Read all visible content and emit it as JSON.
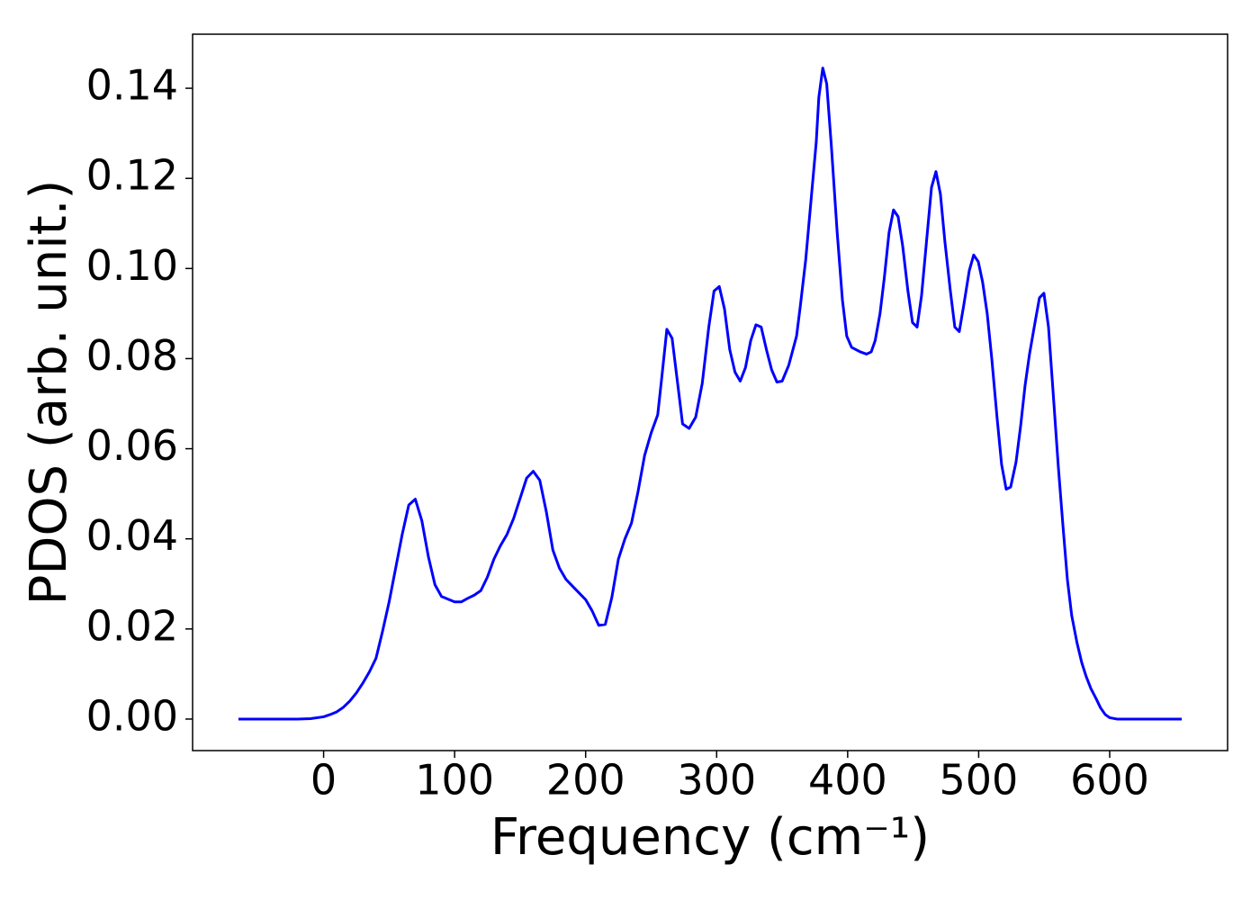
{
  "chart_data": {
    "type": "line",
    "x_label": "Frequency (cm⁻¹)",
    "y_label": "PDOS (arb. unit.)",
    "x": [
      -65,
      -40,
      -20,
      -10,
      0,
      5,
      10,
      15,
      20,
      25,
      30,
      35,
      40,
      45,
      50,
      55,
      60,
      65,
      70,
      75,
      80,
      85,
      90,
      100,
      105,
      110,
      115,
      120,
      125,
      130,
      135,
      140,
      145,
      150,
      155,
      160,
      165,
      170,
      175,
      180,
      185,
      190,
      195,
      200,
      205,
      210,
      215,
      220,
      225,
      230,
      235,
      240,
      245,
      250,
      255,
      258,
      262,
      266,
      270,
      274,
      279,
      284,
      289,
      294,
      298,
      302,
      306,
      310,
      314,
      318,
      322,
      326,
      330,
      334,
      338,
      342,
      346,
      350,
      355,
      361,
      364,
      368,
      372,
      376,
      378,
      381,
      384,
      387.6,
      392,
      396,
      399.3,
      403,
      409.6,
      414.4,
      418,
      421,
      424.7,
      428,
      431.6,
      435,
      438.5,
      442,
      446,
      449.5,
      453,
      456.4,
      460.5,
      464,
      467.4,
      470.8,
      474.2,
      478.4,
      481.8,
      485.2,
      488.7,
      492.8,
      496.2,
      499.7,
      503,
      506.5,
      510,
      514,
      517.5,
      521,
      524.4,
      528.5,
      532,
      535.4,
      538.8,
      543,
      546.4,
      549.8,
      553.3,
      556.7,
      560.8,
      564.3,
      567.7,
      571,
      575,
      578.7,
      582,
      585.6,
      589.7,
      593,
      596.6,
      600,
      605.5,
      620,
      655
    ],
    "series": [
      {
        "name": "PDOS",
        "color": "#0000ff",
        "values": [
          0,
          0,
          0,
          0.0001,
          0.0005,
          0.001,
          0.0016,
          0.0026,
          0.004,
          0.0058,
          0.008,
          0.0105,
          0.0135,
          0.0195,
          0.026,
          0.0335,
          0.041,
          0.0475,
          0.0488,
          0.044,
          0.036,
          0.0298,
          0.0272,
          0.026,
          0.026,
          0.0268,
          0.0275,
          0.0285,
          0.0315,
          0.0355,
          0.0385,
          0.041,
          0.0445,
          0.049,
          0.0535,
          0.055,
          0.053,
          0.046,
          0.0375,
          0.0335,
          0.031,
          0.0295,
          0.028,
          0.0265,
          0.024,
          0.0208,
          0.021,
          0.027,
          0.0355,
          0.04,
          0.0435,
          0.0505,
          0.0585,
          0.0635,
          0.0675,
          0.0755,
          0.0865,
          0.0845,
          0.075,
          0.0655,
          0.0645,
          0.067,
          0.0745,
          0.087,
          0.095,
          0.096,
          0.091,
          0.082,
          0.077,
          0.075,
          0.078,
          0.084,
          0.0875,
          0.087,
          0.082,
          0.0775,
          0.0748,
          0.075,
          0.0785,
          0.085,
          0.092,
          0.102,
          0.115,
          0.128,
          0.138,
          0.1445,
          0.141,
          0.127,
          0.108,
          0.093,
          0.085,
          0.0825,
          0.0815,
          0.081,
          0.0815,
          0.084,
          0.09,
          0.098,
          0.108,
          0.113,
          0.1115,
          0.105,
          0.095,
          0.088,
          0.087,
          0.094,
          0.107,
          0.118,
          0.1215,
          0.1165,
          0.106,
          0.095,
          0.087,
          0.086,
          0.092,
          0.0995,
          0.103,
          0.1015,
          0.097,
          0.09,
          0.08,
          0.067,
          0.0565,
          0.051,
          0.0515,
          0.057,
          0.065,
          0.074,
          0.081,
          0.088,
          0.0935,
          0.0945,
          0.087,
          0.073,
          0.056,
          0.043,
          0.031,
          0.023,
          0.017,
          0.0125,
          0.0095,
          0.0068,
          0.0045,
          0.0025,
          0.001,
          0.0003,
          0,
          0,
          0
        ]
      }
    ],
    "xlim": [
      -100,
      690
    ],
    "ylim": [
      -0.007,
      0.152
    ],
    "xticks": [
      0,
      100,
      200,
      300,
      400,
      500,
      600
    ],
    "yticks": [
      {
        "value": 0,
        "label": "0.00"
      },
      {
        "value": 0.02,
        "label": "0.02"
      },
      {
        "value": 0.04,
        "label": "0.04"
      },
      {
        "value": 0.06,
        "label": "0.06"
      },
      {
        "value": 0.08,
        "label": "0.08"
      },
      {
        "value": 0.1,
        "label": "0.10"
      },
      {
        "value": 0.12,
        "label": "0.12"
      },
      {
        "value": 0.14,
        "label": "0.14"
      }
    ]
  }
}
